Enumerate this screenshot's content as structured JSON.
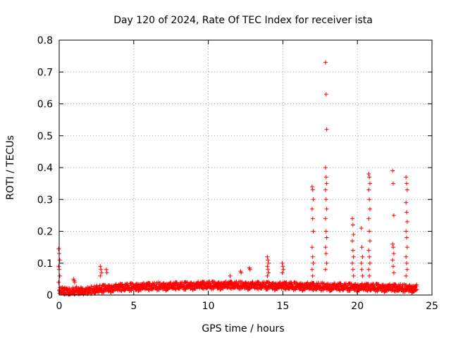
{
  "chart_data": {
    "type": "scatter",
    "title": "Day 120 of 2024, Rate Of TEC Index for receiver ista",
    "xlabel": "GPS time / hours",
    "ylabel": "ROTI / TECUs",
    "xlim": [
      0,
      25
    ],
    "ylim": [
      0,
      0.8
    ],
    "xticks": [
      0,
      5,
      10,
      15,
      20,
      25
    ],
    "yticks": [
      0,
      0.1,
      0.2,
      0.3,
      0.4,
      0.5,
      0.6,
      0.7,
      0.8
    ],
    "grid": true,
    "marker": "+",
    "color": "#ff0000",
    "baseline": {
      "x_start": 0,
      "x_end": 24,
      "profile": [
        [
          0,
          0.012
        ],
        [
          1,
          0.013
        ],
        [
          2,
          0.015
        ],
        [
          3,
          0.02
        ],
        [
          5,
          0.025
        ],
        [
          8,
          0.028
        ],
        [
          10,
          0.03
        ],
        [
          12,
          0.03
        ],
        [
          15,
          0.028
        ],
        [
          17,
          0.026
        ],
        [
          20,
          0.024
        ],
        [
          22,
          0.022
        ],
        [
          24,
          0.02
        ]
      ],
      "spread": 0.025
    },
    "series": [
      {
        "name": "spike-0.0h",
        "x": 0.0,
        "values": [
          0.145,
          0.13,
          0.11,
          0.09,
          0.08,
          0.06,
          0.04
        ]
      },
      {
        "name": "spike-1.0h",
        "x": 1.0,
        "values": [
          0.05,
          0.045,
          0.04
        ]
      },
      {
        "name": "spike-2.8h",
        "x": 2.8,
        "values": [
          0.09,
          0.08,
          0.07,
          0.06
        ]
      },
      {
        "name": "spike-3.2h",
        "x": 3.2,
        "values": [
          0.08,
          0.07
        ]
      },
      {
        "name": "spike-11.5h",
        "x": 11.5,
        "values": [
          0.06
        ]
      },
      {
        "name": "spike-12.2h",
        "x": 12.2,
        "values": [
          0.075,
          0.07
        ]
      },
      {
        "name": "spike-12.8h",
        "x": 12.8,
        "values": [
          0.085,
          0.08
        ]
      },
      {
        "name": "spike-14.0h",
        "x": 14.0,
        "values": [
          0.12,
          0.11,
          0.1,
          0.09,
          0.08,
          0.07,
          0.06
        ]
      },
      {
        "name": "spike-15.0h",
        "x": 15.0,
        "values": [
          0.1,
          0.09,
          0.08,
          0.07
        ]
      },
      {
        "name": "spike-17.0h",
        "x": 17.0,
        "values": [
          0.34,
          0.33,
          0.3,
          0.27,
          0.24,
          0.2,
          0.15,
          0.12,
          0.1,
          0.08,
          0.06
        ]
      },
      {
        "name": "spike-17.9h",
        "x": 17.9,
        "values": [
          0.73,
          0.63,
          0.52,
          0.4,
          0.37,
          0.35,
          0.33,
          0.3,
          0.27,
          0.24,
          0.2,
          0.18,
          0.15,
          0.13,
          0.1,
          0.08
        ]
      },
      {
        "name": "spike-19.7h",
        "x": 19.7,
        "values": [
          0.24,
          0.22,
          0.19,
          0.17,
          0.14,
          0.12,
          0.1,
          0.08,
          0.06
        ]
      },
      {
        "name": "spike-20.3h",
        "x": 20.3,
        "values": [
          0.21,
          0.15,
          0.12,
          0.1,
          0.08,
          0.06
        ]
      },
      {
        "name": "spike-20.8h",
        "x": 20.8,
        "values": [
          0.38,
          0.37,
          0.35,
          0.33,
          0.3,
          0.27,
          0.24,
          0.2,
          0.17,
          0.14,
          0.12,
          0.1,
          0.08,
          0.06
        ]
      },
      {
        "name": "spike-22.4h",
        "x": 22.4,
        "values": [
          0.39,
          0.35,
          0.25,
          0.16,
          0.15,
          0.13,
          0.11,
          0.09,
          0.07
        ]
      },
      {
        "name": "spike-23.3h",
        "x": 23.3,
        "values": [
          0.37,
          0.35,
          0.33,
          0.29,
          0.26,
          0.23,
          0.2,
          0.18,
          0.15,
          0.12,
          0.1,
          0.08,
          0.06
        ]
      }
    ]
  }
}
